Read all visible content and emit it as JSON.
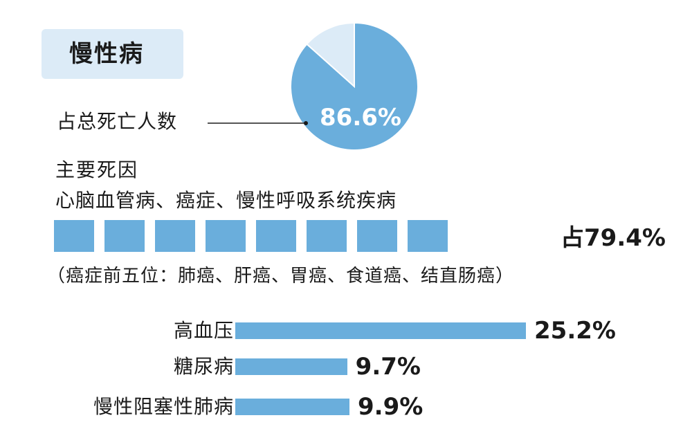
{
  "title": "慢性病",
  "pie": {
    "label": "占总死亡人数",
    "value_text": "86.6%"
  },
  "causes": {
    "heading": "主要死因",
    "list": "心脑血管病、癌症、慢性呼吸系统疾病",
    "percent_text": "占79.4%",
    "cancer_note": "（癌症前五位：肺癌、肝癌、胃癌、食道癌、结直肠癌）"
  },
  "colors": {
    "accent": "#6aaedc",
    "pie_rest": "#dcebf7",
    "title_bg": "#dcebf7"
  },
  "chart_data": [
    {
      "type": "pie",
      "title": "",
      "slices": [
        {
          "label": "占总死亡人数",
          "value": 86.6
        },
        {
          "label": "",
          "value": 13.4
        }
      ]
    },
    {
      "type": "bar",
      "orientation": "horizontal",
      "categories": [
        "高血压",
        "糖尿病",
        "慢性阻塞性肺病"
      ],
      "values": [
        25.2,
        9.7,
        9.9
      ],
      "value_labels": [
        "25.2%",
        "9.7%",
        "9.9%"
      ],
      "xlabel": "",
      "ylabel": "",
      "grid": false
    }
  ]
}
